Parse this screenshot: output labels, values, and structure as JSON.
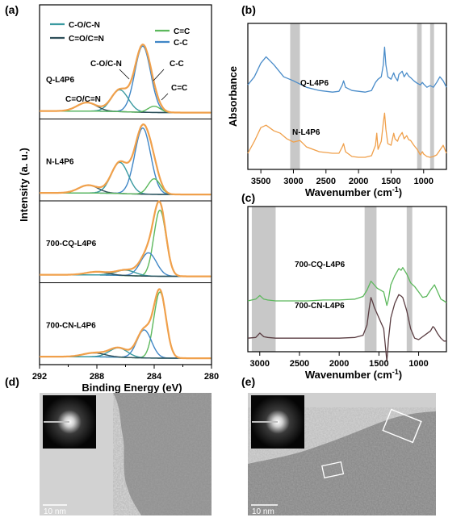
{
  "panels": {
    "a": {
      "label": "(a)"
    },
    "b": {
      "label": "(b)"
    },
    "c": {
      "label": "(c)"
    },
    "d": {
      "label": "(d)",
      "scalebar": "10 nm"
    },
    "e": {
      "label": "(e)",
      "scalebar": "10 nm"
    }
  },
  "chart_data": [
    {
      "panel": "a",
      "type": "line",
      "xlabel": "Binding Energy (eV)",
      "ylabel": "Intensity (a. u.)",
      "xlim": [
        292,
        280
      ],
      "x_ticks": [
        292,
        288,
        284,
        280
      ],
      "legend": {
        "position": "top",
        "entries": [
          {
            "name": "C-O/C-N",
            "color": "#3a9aa0"
          },
          {
            "name": "C=O/C=N",
            "color": "#2f4f5a"
          },
          {
            "name": "C=C",
            "color": "#5cb85c"
          },
          {
            "name": "C-C",
            "color": "#3f86c6"
          }
        ]
      },
      "colors": {
        "envelope": "#f0a04b",
        "background": "#555555"
      },
      "annotations": [
        "C-O/C-N",
        "C=O/C=N",
        "C-C",
        "C=C"
      ],
      "subplots": [
        {
          "name": "Q-L4P6",
          "peaks": [
            {
              "component": "C-C",
              "center": 284.8,
              "height": 0.85,
              "fwhm": 1.3
            },
            {
              "component": "C-O/C-N",
              "center": 286.4,
              "height": 0.28,
              "fwhm": 1.4
            },
            {
              "component": "C=O/C=N",
              "center": 288.7,
              "height": 0.11,
              "fwhm": 1.6
            },
            {
              "component": "C=C",
              "center": 284.0,
              "height": 0.08,
              "fwhm": 1.0
            }
          ]
        },
        {
          "name": "N-L4P6",
          "peaks": [
            {
              "component": "C-C",
              "center": 284.8,
              "height": 0.85,
              "fwhm": 1.3
            },
            {
              "component": "C-O/C-N",
              "center": 286.4,
              "height": 0.4,
              "fwhm": 1.4
            },
            {
              "component": "C=O/C=N",
              "center": 288.6,
              "height": 0.1,
              "fwhm": 1.6
            },
            {
              "component": "C=C",
              "center": 284.0,
              "height": 0.2,
              "fwhm": 1.0
            }
          ]
        },
        {
          "name": "700-CQ-L4P6",
          "peaks": [
            {
              "component": "C=C",
              "center": 283.6,
              "height": 0.85,
              "fwhm": 1.0
            },
            {
              "component": "C-C",
              "center": 284.4,
              "height": 0.3,
              "fwhm": 1.3
            },
            {
              "component": "C-O/C-N",
              "center": 286.0,
              "height": 0.07,
              "fwhm": 1.6
            },
            {
              "component": "C=O/C=N",
              "center": 288.0,
              "height": 0.04,
              "fwhm": 1.8
            }
          ]
        },
        {
          "name": "700-CN-L4P6",
          "peaks": [
            {
              "component": "C=C",
              "center": 283.6,
              "height": 0.85,
              "fwhm": 1.0
            },
            {
              "component": "C-C",
              "center": 284.7,
              "height": 0.36,
              "fwhm": 1.2
            },
            {
              "component": "C-O/C-N",
              "center": 286.5,
              "height": 0.12,
              "fwhm": 1.5
            },
            {
              "component": "C=O/C=N",
              "center": 288.2,
              "height": 0.05,
              "fwhm": 1.8
            }
          ]
        }
      ]
    },
    {
      "panel": "b",
      "type": "line",
      "xlabel": "Wavenumber (cm",
      "xlabel_sup": "-1",
      "xlabel_end": ")",
      "ylabel": "Absorbance",
      "xlim": [
        3700,
        650
      ],
      "x_ticks": [
        3500,
        3000,
        2500,
        2000,
        1500,
        1000
      ],
      "highlight_bands": [
        [
          3050,
          2900
        ],
        [
          1100,
          1030
        ],
        [
          900,
          840
        ]
      ],
      "series": [
        {
          "name": "Q-L4P6",
          "color": "#4a8cc9",
          "x": [
            3700,
            3600,
            3500,
            3420,
            3300,
            3150,
            3000,
            2900,
            2800,
            2600,
            2400,
            2300,
            2250,
            2230,
            2200,
            2100,
            2000,
            1900,
            1800,
            1740,
            1700,
            1650,
            1620,
            1600,
            1580,
            1550,
            1500,
            1460,
            1440,
            1400,
            1380,
            1330,
            1300,
            1260,
            1230,
            1200,
            1150,
            1100,
            1050,
            1020,
            1000,
            950,
            900,
            850,
            800,
            750,
            700,
            650
          ],
          "y": [
            0.45,
            0.55,
            0.72,
            0.8,
            0.7,
            0.55,
            0.5,
            0.46,
            0.42,
            0.38,
            0.36,
            0.37,
            0.45,
            0.5,
            0.42,
            0.38,
            0.37,
            0.36,
            0.38,
            0.48,
            0.52,
            0.55,
            0.7,
            0.92,
            0.7,
            0.55,
            0.52,
            0.6,
            0.55,
            0.5,
            0.58,
            0.62,
            0.55,
            0.6,
            0.56,
            0.54,
            0.5,
            0.47,
            0.45,
            0.48,
            0.46,
            0.42,
            0.44,
            0.42,
            0.48,
            0.55,
            0.5,
            0.42
          ]
        },
        {
          "name": "N-L4P6",
          "color": "#f0a04b",
          "x": [
            3700,
            3600,
            3500,
            3420,
            3300,
            3200,
            3100,
            3000,
            2900,
            2800,
            2600,
            2400,
            2300,
            2250,
            2230,
            2200,
            2100,
            2000,
            1900,
            1800,
            1740,
            1720,
            1700,
            1650,
            1620,
            1600,
            1580,
            1550,
            1500,
            1460,
            1440,
            1400,
            1380,
            1330,
            1300,
            1260,
            1230,
            1200,
            1150,
            1100,
            1050,
            1020,
            1000,
            950,
            900,
            850,
            800,
            750,
            700,
            650
          ],
          "y": [
            0.1,
            0.25,
            0.42,
            0.45,
            0.38,
            0.35,
            0.28,
            0.24,
            0.26,
            0.18,
            0.12,
            0.1,
            0.1,
            0.18,
            0.22,
            0.12,
            0.06,
            0.05,
            0.05,
            0.07,
            0.2,
            0.35,
            0.15,
            0.25,
            0.48,
            0.6,
            0.4,
            0.22,
            0.2,
            0.35,
            0.28,
            0.25,
            0.3,
            0.36,
            0.28,
            0.32,
            0.27,
            0.26,
            0.2,
            0.15,
            0.08,
            0.12,
            0.09,
            0.06,
            0.05,
            0.06,
            0.08,
            0.14,
            0.2,
            0.1
          ]
        }
      ]
    },
    {
      "panel": "c",
      "type": "line",
      "xlabel": "Wavenumber (cm",
      "xlabel_sup": "-1",
      "xlabel_end": ")",
      "ylabel": "",
      "xlim": [
        3150,
        650
      ],
      "x_ticks": [
        3000,
        2500,
        2000,
        1500,
        1000
      ],
      "highlight_bands": [
        [
          3100,
          2800
        ],
        [
          1680,
          1530
        ],
        [
          1150,
          1080
        ]
      ],
      "series": [
        {
          "name": "700-CQ-L4P6",
          "color": "#5cb85c",
          "x": [
            3150,
            3050,
            3000,
            2950,
            2900,
            2800,
            2600,
            2400,
            2200,
            2000,
            1800,
            1700,
            1650,
            1600,
            1560,
            1520,
            1480,
            1440,
            1400,
            1380,
            1350,
            1300,
            1250,
            1220,
            1200,
            1150,
            1100,
            1050,
            1000,
            950,
            900,
            850,
            800,
            760,
            720,
            680,
            650
          ],
          "y": [
            0.6,
            0.62,
            0.66,
            0.62,
            0.61,
            0.6,
            0.6,
            0.6,
            0.61,
            0.61,
            0.62,
            0.65,
            0.72,
            0.82,
            0.78,
            0.74,
            0.72,
            0.7,
            0.55,
            0.62,
            0.78,
            0.88,
            0.96,
            0.94,
            0.97,
            0.9,
            0.8,
            0.76,
            0.7,
            0.64,
            0.65,
            0.72,
            0.78,
            0.7,
            0.62,
            0.6,
            0.58
          ]
        },
        {
          "name": "700-CN-L4P6",
          "color": "#5a3d42",
          "x": [
            3150,
            3050,
            3000,
            2950,
            2900,
            2800,
            2600,
            2400,
            2200,
            2000,
            1800,
            1700,
            1650,
            1620,
            1600,
            1580,
            1560,
            1520,
            1480,
            1440,
            1400,
            1380,
            1350,
            1300,
            1250,
            1220,
            1200,
            1150,
            1100,
            1050,
            1000,
            950,
            900,
            850,
            820,
            800,
            760,
            720,
            680,
            650
          ],
          "y": [
            0.12,
            0.13,
            0.19,
            0.14,
            0.13,
            0.12,
            0.12,
            0.12,
            0.12,
            0.12,
            0.13,
            0.16,
            0.3,
            0.55,
            0.68,
            0.62,
            0.55,
            0.45,
            0.35,
            0.25,
            -0.2,
            0.1,
            0.4,
            0.6,
            0.72,
            0.7,
            0.68,
            0.5,
            0.25,
            0.12,
            0.1,
            0.14,
            0.18,
            0.22,
            0.28,
            0.26,
            0.18,
            0.12,
            0.08,
            0.08
          ]
        }
      ]
    }
  ]
}
